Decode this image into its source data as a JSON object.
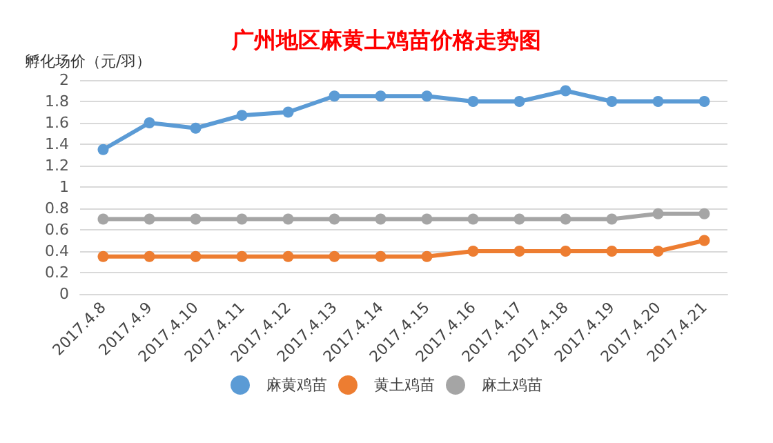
{
  "chart_data": {
    "type": "line",
    "title": "广州地区麻黄土鸡苗价格走势图",
    "ylabel": "孵化场价（元/羽）",
    "categories": [
      "2017.4.8",
      "2017.4.9",
      "2017.4.10",
      "2017.4.11",
      "2017.4.12",
      "2017.4.13",
      "2017.4.14",
      "2017.4.15",
      "2017.4.16",
      "2017.4.17",
      "2017.4.18",
      "2017.4.19",
      "2017.4.20",
      "2017.4.21"
    ],
    "series": [
      {
        "name": "麻黄鸡苗",
        "color": "#5b9bd5",
        "values": [
          1.35,
          1.6,
          1.55,
          1.67,
          1.7,
          1.85,
          1.85,
          1.85,
          1.8,
          1.8,
          1.9,
          1.8,
          1.8,
          1.8
        ]
      },
      {
        "name": "黄土鸡苗",
        "color": "#ed7d31",
        "values": [
          0.35,
          0.35,
          0.35,
          0.35,
          0.35,
          0.35,
          0.35,
          0.35,
          0.4,
          0.4,
          0.4,
          0.4,
          0.4,
          0.5
        ]
      },
      {
        "name": "麻土鸡苗",
        "color": "#a5a5a5",
        "values": [
          0.7,
          0.7,
          0.7,
          0.7,
          0.7,
          0.7,
          0.7,
          0.7,
          0.7,
          0.7,
          0.7,
          0.7,
          0.75,
          0.75
        ]
      }
    ],
    "ylim": [
      0,
      2
    ],
    "yticks": [
      0,
      0.2,
      0.4,
      0.6,
      0.8,
      1,
      1.2,
      1.4,
      1.6,
      1.8,
      2
    ],
    "grid": "y",
    "legend": "bottom",
    "marker": "circle",
    "line_style": "solid"
  }
}
